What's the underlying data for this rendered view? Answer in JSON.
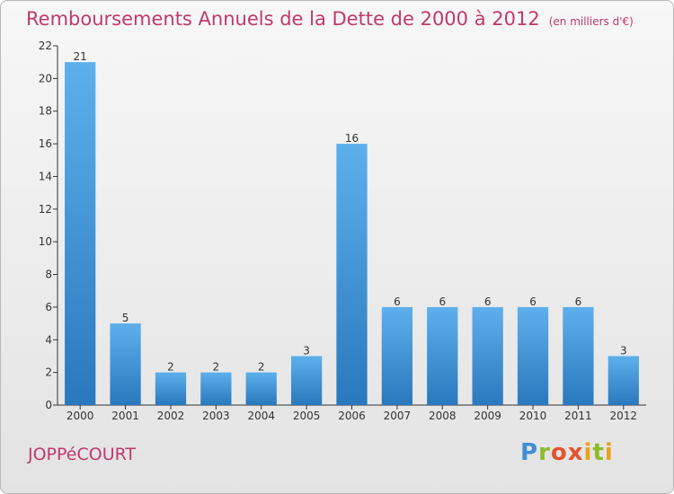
{
  "chart_data": {
    "type": "bar",
    "title": "Remboursements Annuels de la Dette de 2000 à 2012",
    "title_unit": "(en milliers d'€)",
    "categories": [
      "2000",
      "2001",
      "2002",
      "2003",
      "2004",
      "2005",
      "2006",
      "2007",
      "2008",
      "2009",
      "2010",
      "2011",
      "2012"
    ],
    "values": [
      21,
      5,
      2,
      2,
      2,
      3,
      16,
      6,
      6,
      6,
      6,
      6,
      3
    ],
    "data_labels": [
      "21",
      "5",
      "2",
      "2",
      "2",
      "3",
      "16",
      "6",
      "6",
      "6",
      "6",
      "6",
      "3"
    ],
    "ylim": [
      0,
      22
    ],
    "yticks": [
      0,
      2,
      4,
      6,
      8,
      10,
      12,
      14,
      16,
      18,
      20,
      22
    ],
    "grid": false,
    "legend": "none",
    "bar_color_top": "#5db0ec",
    "bar_color_bottom": "#2a78bd"
  },
  "footer": {
    "city": "JOPPéCOURT",
    "logo": "Proxiti",
    "logo_colors": [
      "#3d8fd6",
      "#8dbb2b",
      "#e3542c",
      "#e8a21b"
    ]
  }
}
